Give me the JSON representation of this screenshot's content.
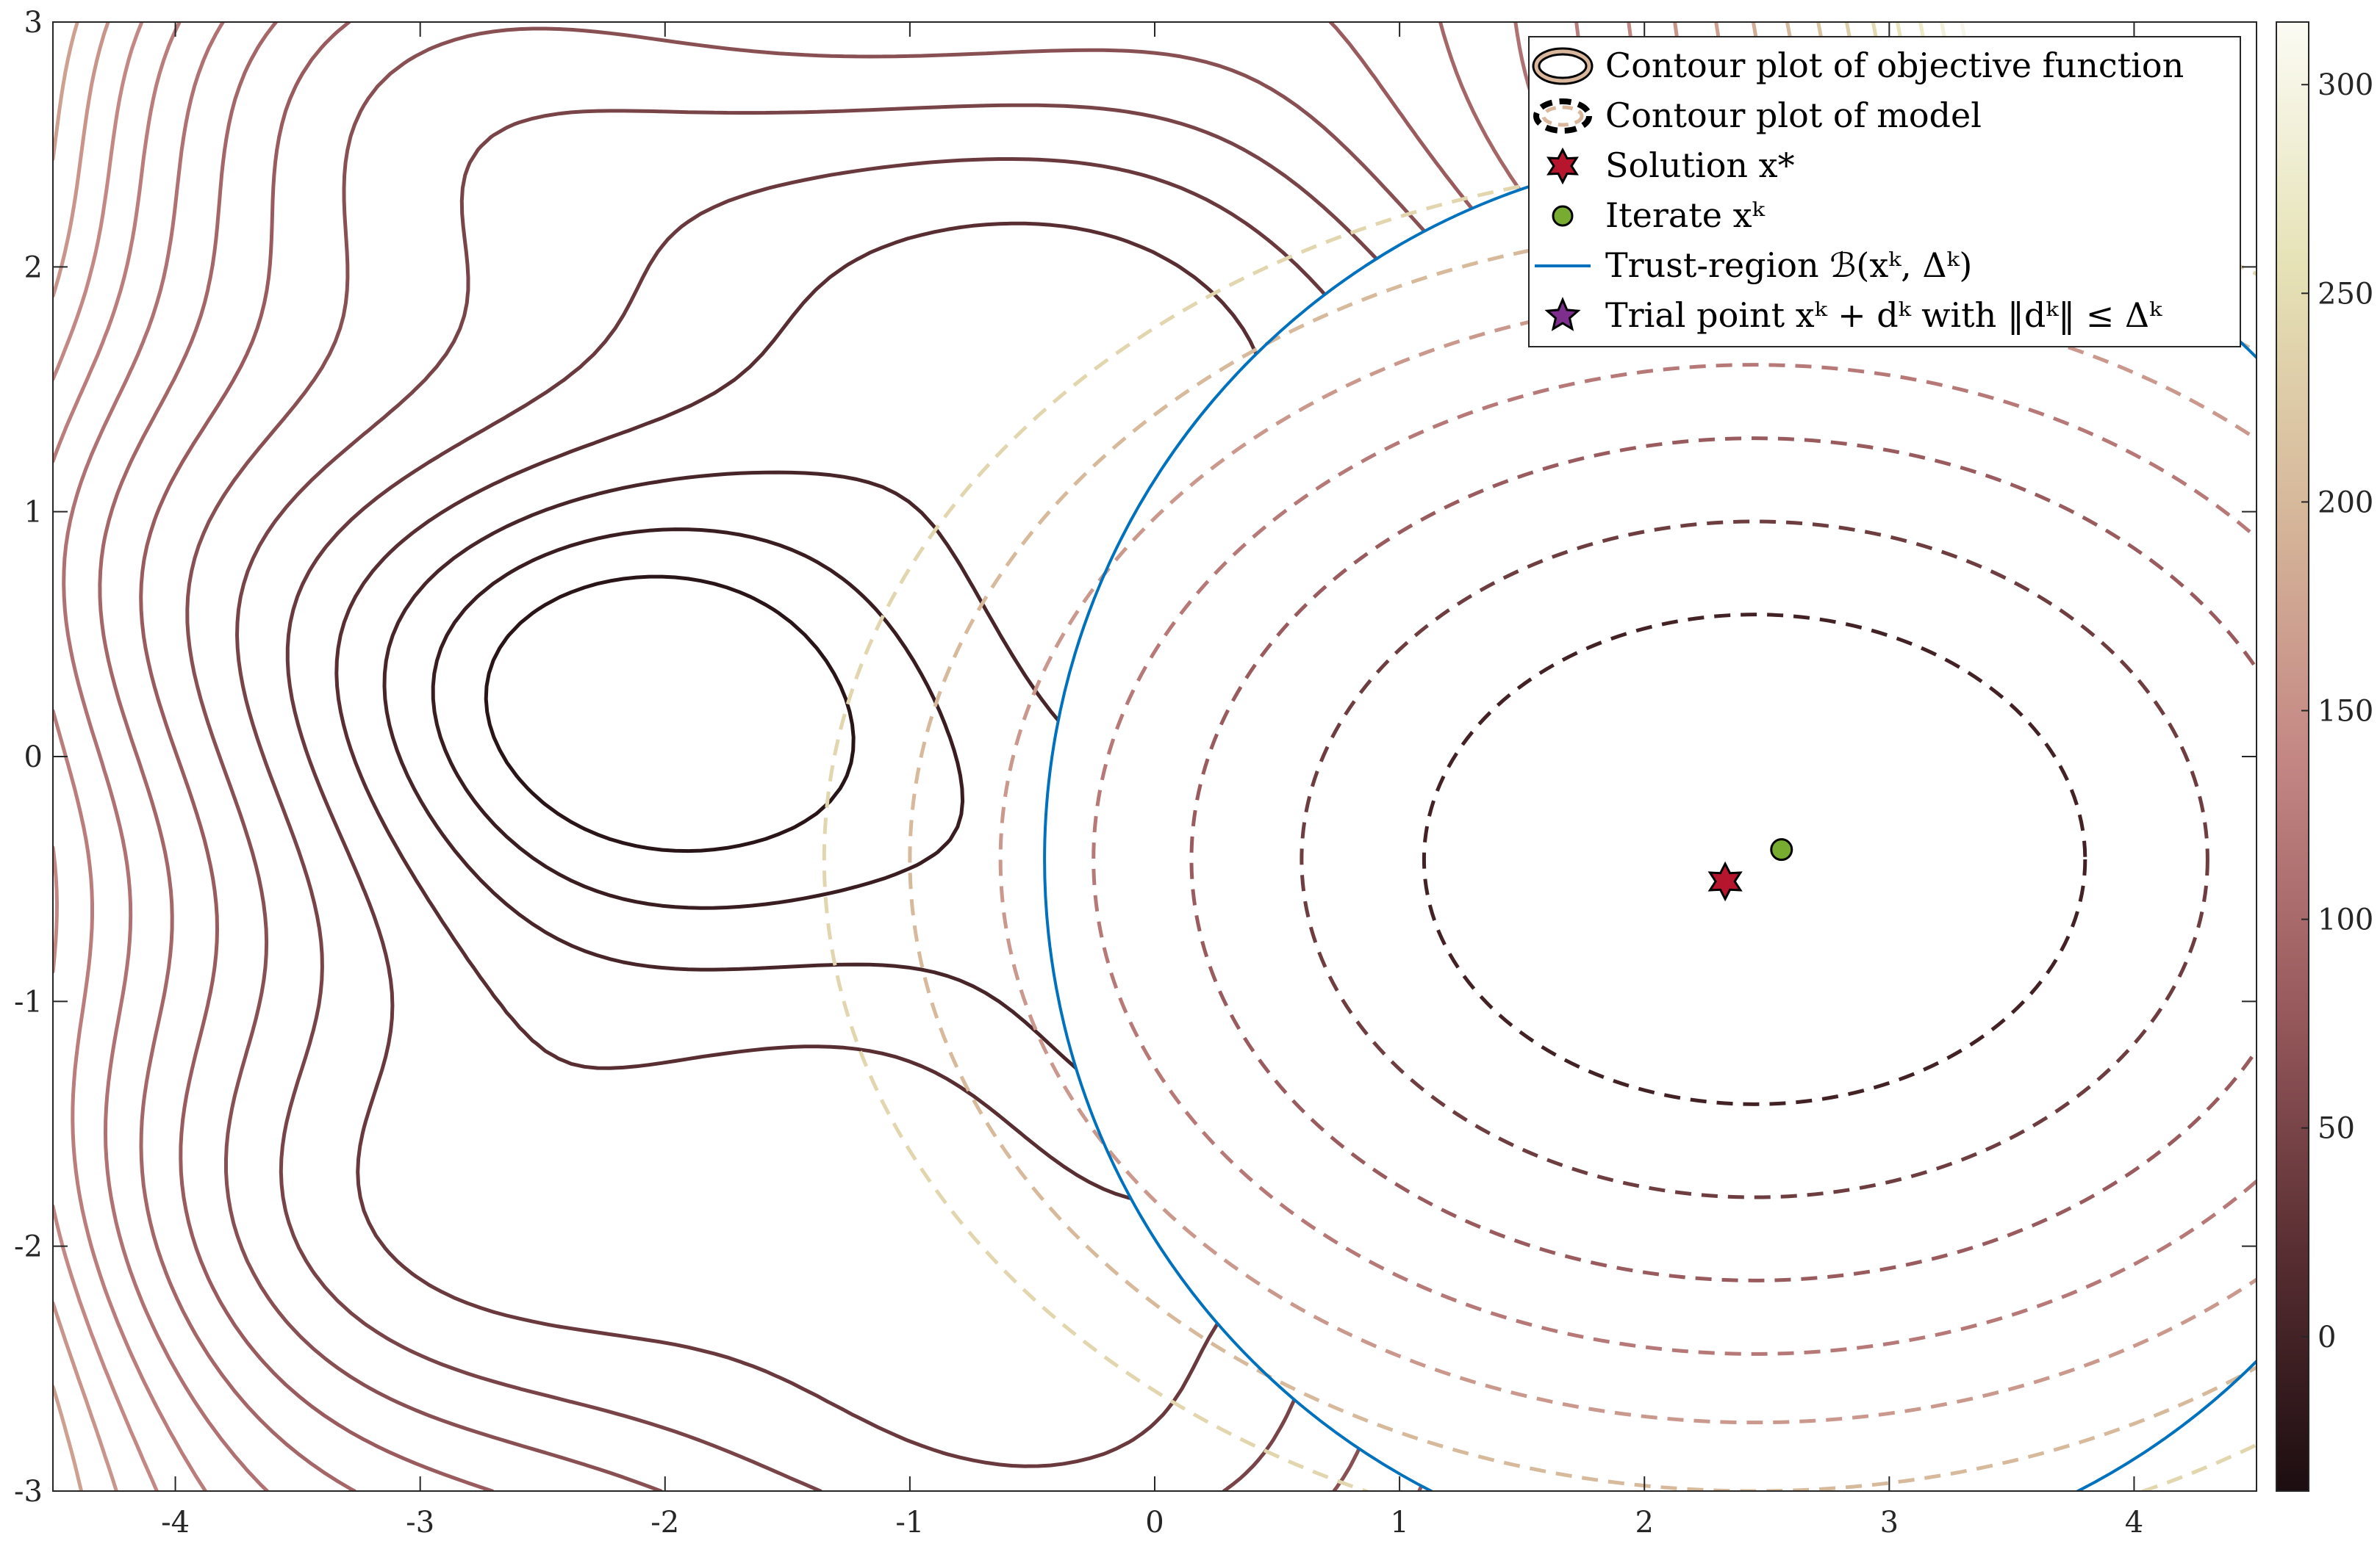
{
  "chart_data": {
    "type": "contour",
    "xlim": [
      -4.5,
      4.5
    ],
    "ylim": [
      -3,
      3
    ],
    "xticks": [
      -4,
      -3,
      -2,
      -1,
      0,
      1,
      2,
      3,
      4
    ],
    "yticks": [
      -3,
      -2,
      -1,
      0,
      1,
      2,
      3
    ],
    "xtick_labels": [
      "-4",
      "-3",
      "-2",
      "-1",
      "0",
      "1",
      "2",
      "3",
      "4"
    ],
    "ytick_labels": [
      "-3",
      "-2",
      "-1",
      "0",
      "1",
      "2",
      "3"
    ],
    "grid": false,
    "legend_position": "top-right",
    "colorbar": {
      "range": [
        -37,
        315
      ],
      "ticks": [
        0,
        50,
        100,
        150,
        200,
        250,
        300
      ],
      "tick_labels": [
        "0",
        "50",
        "100",
        "150",
        "200",
        "250",
        "300"
      ],
      "colormap": [
        "#1c0d10",
        "#5a2f33",
        "#9a5b5e",
        "#c48784",
        "#d6b79a",
        "#e6e2b6",
        "#fbfbf4"
      ]
    },
    "objective_contour_levels": [
      -25,
      -10,
      5,
      20,
      35,
      50,
      65,
      80,
      95,
      110,
      125,
      140,
      155,
      170,
      185,
      200,
      215,
      230,
      245,
      260,
      275,
      290,
      305
    ],
    "model": {
      "center": [
        2.45,
        -0.42
      ],
      "contour_levels": [
        0,
        40,
        80,
        120,
        160,
        200,
        240
      ],
      "radii_x": [
        1.35,
        1.85,
        2.3,
        2.7,
        3.08,
        3.45,
        3.8
      ],
      "radii_y": [
        1.0,
        1.38,
        1.72,
        2.02,
        2.3,
        2.58,
        2.84
      ]
    },
    "trust_region": {
      "center": [
        2.45,
        -0.42
      ],
      "radius": 2.9,
      "color": "#0072bd"
    },
    "solution": {
      "x": 2.33,
      "y": -0.51,
      "color": "#b5162d"
    },
    "iterate": {
      "x": 2.56,
      "y": -0.38,
      "color": "#77ac30"
    },
    "legend": [
      {
        "kind": "objective",
        "label": "Contour plot of objective function"
      },
      {
        "kind": "model",
        "label": "Contour plot of model"
      },
      {
        "kind": "solution",
        "label": "Solution x*"
      },
      {
        "kind": "iterate",
        "label": "Iterate xᵏ"
      },
      {
        "kind": "trust",
        "label": "Trust-region ℬ(xᵏ, Δᵏ)"
      },
      {
        "kind": "trial",
        "label": "Trial point xᵏ + dᵏ with ‖dᵏ‖ ≤ Δᵏ",
        "color": "#7e2f8e"
      }
    ]
  }
}
